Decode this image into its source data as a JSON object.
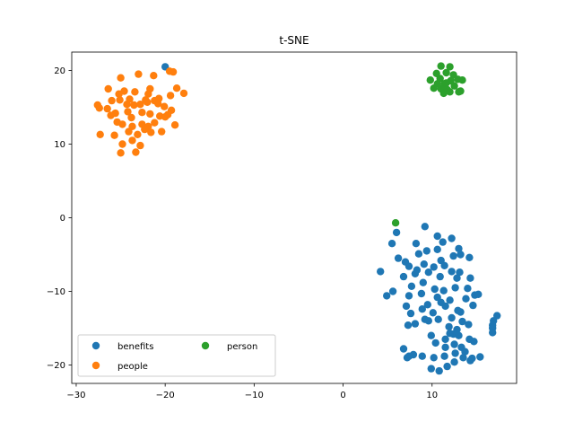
{
  "chart_data": {
    "type": "scatter",
    "title": "t-SNE",
    "xlabel": "",
    "ylabel": "",
    "xlim": [
      -30.5,
      19.5
    ],
    "ylim": [
      -22.5,
      22.5
    ],
    "xticks": [
      -30,
      -20,
      -10,
      0,
      10
    ],
    "yticks": [
      -20,
      -10,
      0,
      10,
      20
    ],
    "grid": false,
    "legend": {
      "placement": "lower-left",
      "columns": 2
    },
    "series": [
      {
        "name": "benefits",
        "color": "#1f77b4",
        "points": [
          [
            -20.0,
            20.5
          ],
          [
            9.2,
            -1.2
          ],
          [
            6.0,
            -2.0
          ],
          [
            5.5,
            -3.5
          ],
          [
            10.6,
            -2.5
          ],
          [
            12.2,
            -2.8
          ],
          [
            8.2,
            -3.5
          ],
          [
            11.2,
            -3.3
          ],
          [
            13.0,
            -4.2
          ],
          [
            9.4,
            -4.5
          ],
          [
            10.6,
            -4.3
          ],
          [
            6.2,
            -5.5
          ],
          [
            7.0,
            -6.0
          ],
          [
            8.5,
            -4.9
          ],
          [
            11.0,
            -5.8
          ],
          [
            12.4,
            -5.2
          ],
          [
            13.2,
            -5.0
          ],
          [
            14.2,
            -5.4
          ],
          [
            4.2,
            -7.3
          ],
          [
            7.4,
            -6.6
          ],
          [
            8.3,
            -7.1
          ],
          [
            9.1,
            -6.3
          ],
          [
            10.2,
            -6.7
          ],
          [
            11.4,
            -6.5
          ],
          [
            12.2,
            -7.3
          ],
          [
            13.1,
            -7.4
          ],
          [
            5.6,
            -10.0
          ],
          [
            6.8,
            -8.0
          ],
          [
            8.1,
            -7.6
          ],
          [
            9.6,
            -7.4
          ],
          [
            10.9,
            -8.0
          ],
          [
            12.8,
            -8.2
          ],
          [
            14.3,
            -8.2
          ],
          [
            4.9,
            -10.6
          ],
          [
            7.7,
            -9.3
          ],
          [
            9.0,
            -8.8
          ],
          [
            10.3,
            -9.7
          ],
          [
            11.3,
            -9.9
          ],
          [
            12.6,
            -9.5
          ],
          [
            14.0,
            -9.6
          ],
          [
            7.4,
            -10.6
          ],
          [
            8.8,
            -10.3
          ],
          [
            10.6,
            -10.8
          ],
          [
            12.0,
            -11.2
          ],
          [
            13.8,
            -11.0
          ],
          [
            14.8,
            -10.5
          ],
          [
            7.1,
            -12.0
          ],
          [
            8.9,
            -12.4
          ],
          [
            10.1,
            -12.9
          ],
          [
            11.5,
            -12.0
          ],
          [
            12.9,
            -12.6
          ],
          [
            14.6,
            -11.9
          ],
          [
            7.6,
            -13.0
          ],
          [
            9.2,
            -13.8
          ],
          [
            10.7,
            -13.8
          ],
          [
            12.2,
            -13.6
          ],
          [
            13.4,
            -14.1
          ],
          [
            7.3,
            -14.6
          ],
          [
            8.1,
            -14.4
          ],
          [
            9.6,
            -14.0
          ],
          [
            11.9,
            -14.8
          ],
          [
            12.8,
            -15.2
          ],
          [
            14.1,
            -14.5
          ],
          [
            9.9,
            -16.0
          ],
          [
            11.5,
            -16.5
          ],
          [
            12.4,
            -15.8
          ],
          [
            13.0,
            -16.0
          ],
          [
            14.2,
            -16.5
          ],
          [
            17.3,
            -13.3
          ],
          [
            16.9,
            -14.0
          ],
          [
            16.8,
            -14.6
          ],
          [
            16.8,
            -15.0
          ],
          [
            16.8,
            -15.6
          ],
          [
            10.4,
            -17.0
          ],
          [
            11.5,
            -17.6
          ],
          [
            12.5,
            -17.2
          ],
          [
            13.3,
            -17.6
          ],
          [
            14.7,
            -16.8
          ],
          [
            6.8,
            -17.8
          ],
          [
            7.4,
            -18.8
          ],
          [
            7.9,
            -18.6
          ],
          [
            8.9,
            -18.8
          ],
          [
            10.2,
            -19.0
          ],
          [
            11.4,
            -18.8
          ],
          [
            12.6,
            -18.4
          ],
          [
            13.7,
            -18.2
          ],
          [
            14.3,
            -19.4
          ],
          [
            15.4,
            -18.9
          ],
          [
            7.2,
            -19.0
          ],
          [
            9.9,
            -20.5
          ],
          [
            10.8,
            -20.8
          ],
          [
            11.7,
            -20.2
          ],
          [
            12.5,
            -19.6
          ],
          [
            13.5,
            -19.0
          ],
          [
            14.5,
            -19.1
          ],
          [
            12.0,
            -15.7
          ],
          [
            9.5,
            -11.8
          ],
          [
            11.0,
            -11.5
          ],
          [
            13.2,
            -12.8
          ],
          [
            15.2,
            -10.4
          ]
        ]
      },
      {
        "name": "people",
        "color": "#ff7f0e",
        "points": [
          [
            -19.5,
            19.9
          ],
          [
            -19.1,
            19.8
          ],
          [
            -23.0,
            19.5
          ],
          [
            -21.3,
            19.3
          ],
          [
            -25.0,
            19.0
          ],
          [
            -26.4,
            17.5
          ],
          [
            -24.6,
            17.2
          ],
          [
            -25.2,
            16.8
          ],
          [
            -23.4,
            17.1
          ],
          [
            -21.7,
            17.5
          ],
          [
            -21.9,
            16.8
          ],
          [
            -19.4,
            16.6
          ],
          [
            -18.7,
            17.6
          ],
          [
            -17.9,
            16.9
          ],
          [
            -26.0,
            15.9
          ],
          [
            -25.1,
            16.0
          ],
          [
            -24.3,
            15.4
          ],
          [
            -23.5,
            15.3
          ],
          [
            -22.8,
            15.4
          ],
          [
            -22.0,
            15.7
          ],
          [
            -21.2,
            15.9
          ],
          [
            -20.8,
            15.5
          ],
          [
            -20.1,
            15.1
          ],
          [
            -19.3,
            14.6
          ],
          [
            -27.6,
            15.3
          ],
          [
            -27.4,
            14.9
          ],
          [
            -26.5,
            14.8
          ],
          [
            -25.6,
            14.2
          ],
          [
            -24.2,
            14.4
          ],
          [
            -23.8,
            13.6
          ],
          [
            -22.6,
            14.3
          ],
          [
            -21.7,
            14.1
          ],
          [
            -20.6,
            13.8
          ],
          [
            -20.0,
            13.7
          ],
          [
            -26.1,
            13.9
          ],
          [
            -25.4,
            13.0
          ],
          [
            -24.8,
            12.7
          ],
          [
            -23.7,
            12.4
          ],
          [
            -22.6,
            12.7
          ],
          [
            -21.9,
            12.4
          ],
          [
            -21.2,
            12.9
          ],
          [
            -20.4,
            11.7
          ],
          [
            -18.9,
            12.6
          ],
          [
            -27.3,
            11.3
          ],
          [
            -25.7,
            11.2
          ],
          [
            -24.1,
            11.7
          ],
          [
            -23.1,
            11.3
          ],
          [
            -22.3,
            12.0
          ],
          [
            -21.6,
            11.6
          ],
          [
            -23.7,
            10.5
          ],
          [
            -22.8,
            9.8
          ],
          [
            -23.3,
            8.9
          ],
          [
            -24.8,
            10.0
          ],
          [
            -25.0,
            8.8
          ],
          [
            -22.2,
            16.0
          ],
          [
            -20.7,
            16.2
          ],
          [
            -24.0,
            16.1
          ],
          [
            -19.7,
            14.0
          ]
        ]
      },
      {
        "name": "person",
        "color": "#2ca02c",
        "points": [
          [
            11.0,
            20.6
          ],
          [
            12.0,
            20.5
          ],
          [
            10.5,
            19.6
          ],
          [
            11.6,
            19.7
          ],
          [
            12.4,
            19.4
          ],
          [
            9.8,
            18.7
          ],
          [
            10.9,
            18.9
          ],
          [
            11.4,
            18.2
          ],
          [
            12.1,
            18.6
          ],
          [
            12.9,
            18.8
          ],
          [
            13.4,
            18.7
          ],
          [
            10.2,
            17.6
          ],
          [
            11.0,
            17.5
          ],
          [
            11.7,
            17.4
          ],
          [
            12.5,
            17.9
          ],
          [
            11.3,
            16.9
          ],
          [
            12.0,
            17.1
          ],
          [
            13.0,
            17.1
          ],
          [
            13.2,
            17.2
          ],
          [
            11.6,
            18.3
          ],
          [
            10.6,
            18.2
          ],
          [
            5.9,
            -0.7
          ]
        ]
      }
    ]
  }
}
